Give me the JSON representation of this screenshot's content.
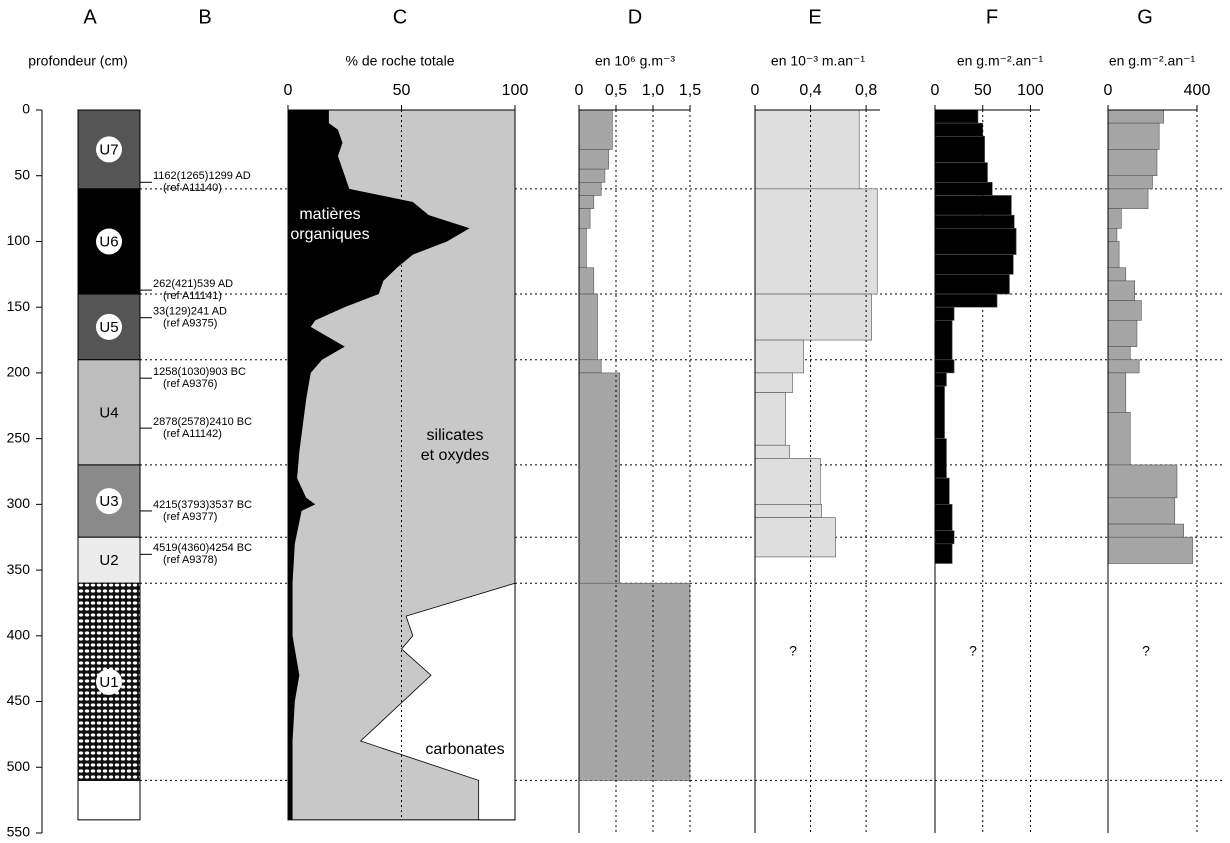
{
  "chart_data": [
    {
      "type": "lithology",
      "letter": "A",
      "ylabel": "profondeur (cm)",
      "ylim": [
        0,
        550
      ],
      "yticks": [
        0,
        50,
        100,
        150,
        200,
        250,
        300,
        350,
        400,
        450,
        500,
        550
      ],
      "units": [
        {
          "label": "U7",
          "top": 0,
          "bottom": 60,
          "color": "#555555"
        },
        {
          "label": "U6",
          "top": 60,
          "bottom": 140,
          "color": "#000000"
        },
        {
          "label": "U5",
          "top": 140,
          "bottom": 190,
          "color": "#555555"
        },
        {
          "label": "U4",
          "top": 190,
          "bottom": 270,
          "color": "#bdbdbd"
        },
        {
          "label": "U3",
          "top": 270,
          "bottom": 325,
          "color": "#8a8a8a"
        },
        {
          "label": "U2",
          "top": 325,
          "bottom": 360,
          "color": "#ececec"
        },
        {
          "label": "U1",
          "top": 360,
          "bottom": 510,
          "color": "#111111",
          "pattern": "dots"
        },
        {
          "label": null,
          "top": 510,
          "bottom": 540,
          "color": "#ffffff"
        }
      ]
    },
    {
      "type": "dates",
      "letter": "B",
      "dates": [
        {
          "label": "1162(1265)1299 AD",
          "ref": "(ref A11140)",
          "depth": 55
        },
        {
          "label": "262(421)539 AD",
          "ref": "(ref A11141)",
          "depth": 137
        },
        {
          "label": "33(129)241 AD",
          "ref": "(ref A9375)",
          "depth": 158
        },
        {
          "label": "1258(1030)903 BC",
          "ref": "(ref A9376)",
          "depth": 204
        },
        {
          "label": "2878(2578)2410 BC",
          "ref": "(ref A11142)",
          "depth": 242
        },
        {
          "label": "4215(3793)3537 BC",
          "ref": "(ref A9377)",
          "depth": 305
        },
        {
          "label": "4519(4360)4254 BC",
          "ref": "(ref A9378)",
          "depth": 338
        }
      ]
    },
    {
      "type": "composition",
      "letter": "C",
      "xlabel": "% de roche totale",
      "xlim": [
        0,
        100
      ],
      "xticks": [
        0,
        50,
        100
      ],
      "series": [
        {
          "label_lines": [
            "matières",
            "organiques"
          ],
          "color": "#000000",
          "depth": [
            0,
            10,
            15,
            25,
            35,
            50,
            60,
            70,
            80,
            90,
            100,
            110,
            120,
            130,
            140,
            150,
            160,
            165,
            175,
            180,
            190,
            200,
            220,
            260,
            280,
            295,
            300,
            305,
            330,
            360,
            400,
            430,
            450,
            480,
            540
          ],
          "values": [
            18,
            18,
            22,
            24,
            22,
            25,
            27,
            55,
            62,
            80,
            70,
            55,
            48,
            42,
            40,
            25,
            12,
            10,
            20,
            25,
            15,
            10,
            8,
            5,
            4,
            8,
            12,
            6,
            3,
            2,
            2,
            5,
            3,
            2,
            2
          ]
        },
        {
          "label_lines": [
            "silicates",
            "et oxydes"
          ],
          "color": "#c8c8c8"
        },
        {
          "label_lines": [
            "carbonates"
          ],
          "color": "#ffffff",
          "depth": [
            360,
            385,
            400,
            410,
            430,
            480,
            510,
            540
          ],
          "values": [
            0,
            48,
            45,
            50,
            37,
            68,
            16,
            16
          ]
        }
      ]
    },
    {
      "type": "step",
      "letter": "D",
      "xlabel": "en 10⁶ g.m⁻³",
      "xlim": [
        0,
        1.5
      ],
      "xticks": [
        0,
        {
          "value": 0.5,
          "label": "0,5"
        },
        {
          "value": 1,
          "label": "1,0"
        },
        {
          "value": 1.5,
          "label": "1,5"
        }
      ],
      "color": "#a6a6a6",
      "depth_bins": [
        0,
        30,
        45,
        55,
        65,
        75,
        90,
        120,
        140,
        190,
        200,
        360,
        510
      ],
      "values": [
        0.45,
        0.4,
        0.35,
        0.3,
        0.2,
        0.15,
        0.1,
        0.2,
        0.25,
        0.3,
        0.55,
        1.5
      ]
    },
    {
      "type": "step",
      "letter": "E",
      "xlabel": "en 10⁻³ m.an⁻¹",
      "xlim": [
        0,
        0.9
      ],
      "xticks": [
        0,
        {
          "value": 0.4,
          "label": "0,4"
        },
        {
          "value": 0.8,
          "label": "0,8"
        }
      ],
      "color": "#dedede",
      "note": "?",
      "depth_bins": [
        0,
        60,
        140,
        175,
        200,
        215,
        255,
        265,
        300,
        310,
        340
      ],
      "values": [
        0.75,
        0.88,
        0.84,
        0.35,
        0.27,
        0.22,
        0.25,
        0.47,
        0.48,
        0.58
      ]
    },
    {
      "type": "step",
      "letter": "F",
      "xlabel": "en g.m⁻².an⁻¹",
      "xlim": [
        0,
        110
      ],
      "xticks": [
        0,
        50,
        100
      ],
      "color": "#000000",
      "note": "?",
      "depth_bins": [
        0,
        10,
        20,
        40,
        55,
        65,
        80,
        90,
        110,
        125,
        140,
        150,
        160,
        190,
        200,
        210,
        250,
        280,
        300,
        320,
        330,
        345
      ],
      "values": [
        45,
        50,
        52,
        55,
        60,
        80,
        83,
        85,
        82,
        78,
        65,
        20,
        18,
        20,
        12,
        10,
        12,
        15,
        18,
        20,
        18
      ]
    },
    {
      "type": "step",
      "letter": "G",
      "xlabel": "en g.m⁻².an⁻¹",
      "xlim": [
        0,
        400
      ],
      "xticks": [
        0,
        400
      ],
      "color": "#a6a6a6",
      "note": "?",
      "depth_bins": [
        0,
        10,
        30,
        50,
        60,
        75,
        90,
        100,
        120,
        130,
        145,
        160,
        180,
        190,
        200,
        230,
        270,
        295,
        315,
        325,
        345
      ],
      "values": [
        250,
        230,
        220,
        200,
        180,
        60,
        40,
        50,
        80,
        120,
        150,
        130,
        100,
        140,
        80,
        100,
        310,
        300,
        340,
        380
      ]
    }
  ]
}
